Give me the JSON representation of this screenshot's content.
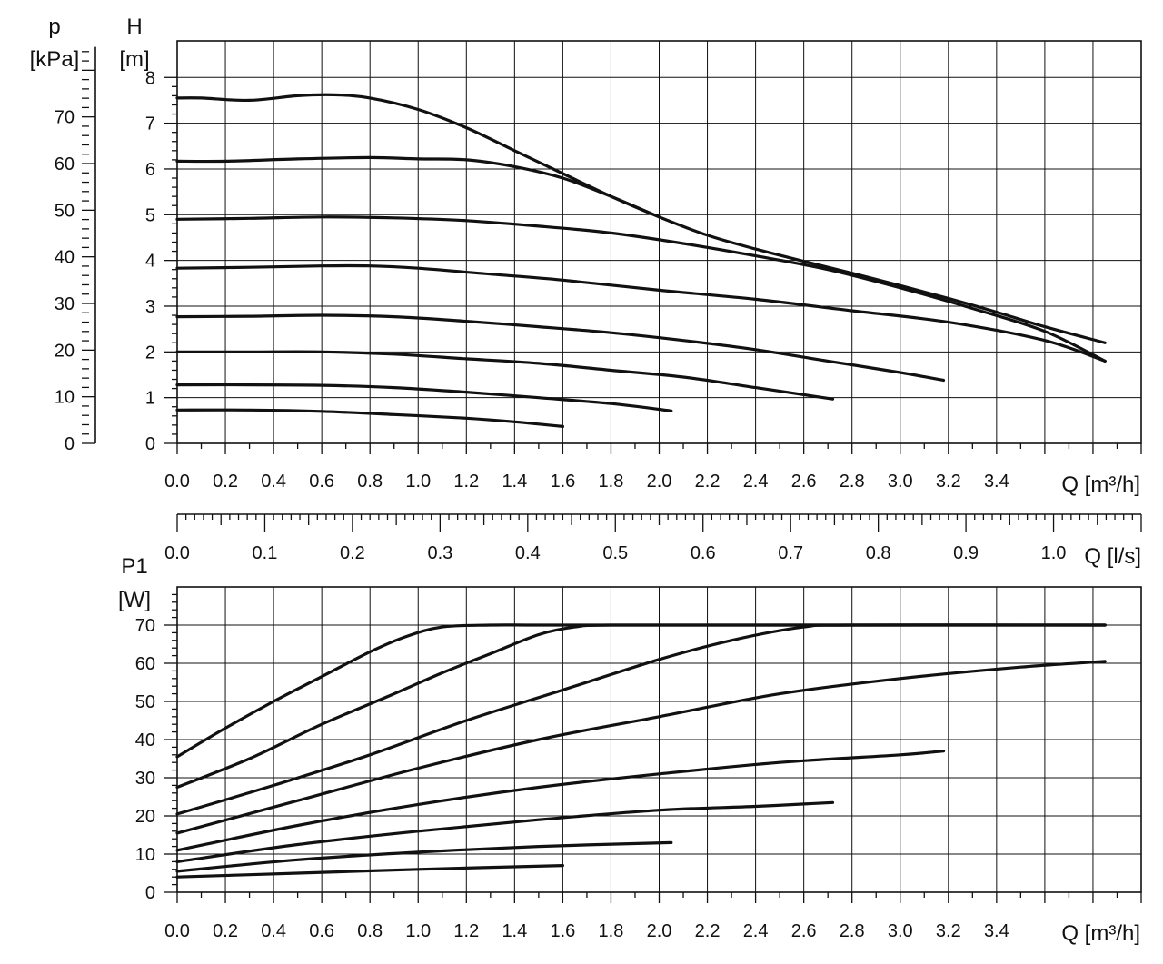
{
  "chart_data": [
    {
      "type": "line",
      "xlabel": "Q [m³/h]",
      "ylabel_left_symbol": "p",
      "ylabel_left_unit": "[kPa]",
      "ylabel_right_symbol": "H",
      "ylabel_right_unit": "[m]",
      "x_ticks": [
        "0.0",
        "0.2",
        "0.4",
        "0.6",
        "0.8",
        "1.0",
        "1.2",
        "1.4",
        "1.6",
        "1.8",
        "2.0",
        "2.2",
        "2.4",
        "2.6",
        "2.8",
        "3.0",
        "3.2",
        "3.4"
      ],
      "y_ticks_H": [
        "0",
        "1",
        "2",
        "3",
        "4",
        "5",
        "6",
        "7",
        "8"
      ],
      "y_ticks_p": [
        "0",
        "10",
        "20",
        "30",
        "40",
        "50",
        "60",
        "70"
      ],
      "xlim": [
        0,
        4.0
      ],
      "ylim": [
        0,
        8.8
      ],
      "grid": true,
      "series": [
        {
          "x": [
            0,
            0.1,
            0.3,
            0.5,
            0.65,
            0.8,
            1.0,
            1.2,
            1.4,
            1.6,
            1.8,
            2.0,
            2.2,
            2.4,
            2.6,
            2.8,
            3.0,
            3.2,
            3.4,
            3.6,
            3.85
          ],
          "y": [
            7.55,
            7.55,
            7.5,
            7.6,
            7.62,
            7.55,
            7.3,
            6.9,
            6.4,
            5.9,
            5.4,
            4.95,
            4.55,
            4.25,
            3.98,
            3.72,
            3.45,
            3.17,
            2.87,
            2.55,
            2.2
          ]
        },
        {
          "x": [
            0,
            0.2,
            0.5,
            0.8,
            1.0,
            1.2,
            1.4,
            1.6,
            1.8,
            2.0
          ],
          "y": [
            6.17,
            6.17,
            6.22,
            6.25,
            6.22,
            6.2,
            6.05,
            5.8,
            5.4,
            4.95
          ]
        },
        {
          "x": [
            0,
            0.3,
            0.6,
            0.9,
            1.2,
            1.5,
            1.8,
            2.1,
            2.4,
            2.7,
            3.0,
            3.3,
            3.6,
            3.85
          ],
          "y": [
            4.9,
            4.92,
            4.95,
            4.93,
            4.87,
            4.75,
            4.6,
            4.37,
            4.1,
            3.8,
            3.4,
            2.95,
            2.45,
            1.8
          ]
        },
        {
          "x": [
            0,
            0.3,
            0.6,
            0.8,
            1.0,
            1.3,
            1.6,
            2.0,
            2.4,
            2.8,
            3.2,
            3.6,
            3.85
          ],
          "y": [
            3.83,
            3.85,
            3.88,
            3.88,
            3.83,
            3.7,
            3.57,
            3.35,
            3.15,
            2.9,
            2.65,
            2.25,
            1.8
          ]
        },
        {
          "x": [
            0,
            0.3,
            0.6,
            0.9,
            1.2,
            1.5,
            1.8,
            2.1,
            2.4,
            2.7,
            3.0,
            3.18
          ],
          "y": [
            2.77,
            2.78,
            2.8,
            2.77,
            2.67,
            2.55,
            2.42,
            2.25,
            2.05,
            1.8,
            1.55,
            1.38
          ]
        },
        {
          "x": [
            0,
            0.3,
            0.6,
            0.9,
            1.2,
            1.5,
            1.8,
            2.1,
            2.4,
            2.72
          ],
          "y": [
            2.0,
            2.0,
            2.0,
            1.95,
            1.85,
            1.75,
            1.6,
            1.45,
            1.22,
            0.97
          ]
        },
        {
          "x": [
            0,
            0.3,
            0.6,
            0.9,
            1.2,
            1.5,
            1.8,
            2.05
          ],
          "y": [
            1.28,
            1.28,
            1.27,
            1.22,
            1.12,
            1.0,
            0.87,
            0.71
          ]
        },
        {
          "x": [
            0,
            0.3,
            0.6,
            0.9,
            1.2,
            1.4,
            1.6
          ],
          "y": [
            0.73,
            0.73,
            0.7,
            0.63,
            0.55,
            0.47,
            0.37
          ]
        }
      ]
    },
    {
      "type": "line",
      "xlabel": "Q [m³/h]",
      "ylabel_symbol": "P1",
      "ylabel_unit": "[W]",
      "x_ticks": [
        "0.0",
        "0.2",
        "0.4",
        "0.6",
        "0.8",
        "1.0",
        "1.2",
        "1.4",
        "1.6",
        "1.8",
        "2.0",
        "2.2",
        "2.4",
        "2.6",
        "2.8",
        "3.0",
        "3.2",
        "3.4"
      ],
      "y_ticks": [
        "0",
        "10",
        "20",
        "30",
        "40",
        "50",
        "60",
        "70"
      ],
      "xlim": [
        0,
        4.0
      ],
      "ylim": [
        0,
        80
      ],
      "grid": true,
      "secondary_x_axis": {
        "label": "Q [l/s]",
        "ticks": [
          "0.0",
          "0.1",
          "0.2",
          "0.3",
          "0.4",
          "0.5",
          "0.6",
          "0.7",
          "0.8",
          "0.9",
          "1.0"
        ],
        "range": [
          0,
          1.1
        ]
      },
      "series": [
        {
          "x": [
            0,
            0.2,
            0.4,
            0.6,
            0.8,
            0.95,
            1.1,
            1.3,
            1.5,
            2.0,
            2.5,
            3.0,
            3.5,
            3.85
          ],
          "y": [
            35.5,
            43,
            50,
            56.5,
            63,
            67,
            69.5,
            70,
            70,
            70,
            70,
            70,
            70,
            70
          ]
        },
        {
          "x": [
            0,
            0.3,
            0.6,
            0.9,
            1.1,
            1.3,
            1.5,
            1.65,
            1.8,
            2.5,
            3.85
          ],
          "y": [
            27.5,
            35,
            44,
            52,
            57.5,
            62.5,
            67.5,
            69.5,
            70,
            70,
            70
          ]
        },
        {
          "x": [
            0,
            0.4,
            0.8,
            1.2,
            1.6,
            2.0,
            2.3,
            2.6,
            2.8,
            3.85
          ],
          "y": [
            20.5,
            28,
            36,
            45,
            53,
            61,
            66,
            69.5,
            70,
            70
          ]
        },
        {
          "x": [
            0,
            0.5,
            1.0,
            1.5,
            2.0,
            2.5,
            3.0,
            3.5,
            3.85
          ],
          "y": [
            15.5,
            24,
            32.5,
            40,
            46,
            52,
            56,
            59,
            60.5
          ]
        },
        {
          "x": [
            0,
            0.5,
            1.0,
            1.5,
            2.0,
            2.5,
            3.0,
            3.18
          ],
          "y": [
            11,
            17.5,
            23,
            27.5,
            31,
            34,
            36,
            37
          ]
        },
        {
          "x": [
            0,
            0.5,
            1.0,
            1.5,
            2.0,
            2.4,
            2.72
          ],
          "y": [
            8,
            12.5,
            16,
            19,
            21.5,
            22.5,
            23.5
          ]
        },
        {
          "x": [
            0,
            0.5,
            1.0,
            1.5,
            2.05
          ],
          "y": [
            5.5,
            8.5,
            10.5,
            12,
            13
          ]
        },
        {
          "x": [
            0,
            0.5,
            1.0,
            1.6
          ],
          "y": [
            4,
            5,
            6,
            7
          ]
        }
      ]
    }
  ]
}
